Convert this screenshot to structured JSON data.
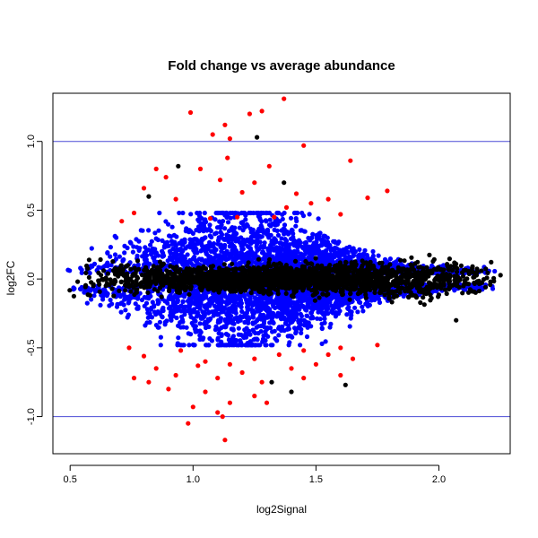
{
  "chart_data": {
    "type": "scatter",
    "title": "Fold change vs average abundance",
    "xlabel": "log2Signal",
    "ylabel": "log2FC",
    "xlim": [
      0.43,
      2.29
    ],
    "ylim": [
      -1.27,
      1.35
    ],
    "x_ticks": [
      0.5,
      1.0,
      1.5,
      2.0
    ],
    "x_tick_labels": [
      "0.5",
      "1.0",
      "1.5",
      "2.0"
    ],
    "y_ticks": [
      -1.0,
      -0.5,
      0.0,
      0.5,
      1.0
    ],
    "y_tick_labels": [
      "-1.0",
      "-0.5",
      "0.0",
      "0.5",
      "1.0"
    ],
    "reference_lines": [
      1.0,
      -1.0
    ],
    "reference_line_color": "#4b4bd6",
    "grid": false,
    "legend": false,
    "colors": {
      "not_significant": "#000000",
      "significant": "#0000ff",
      "large_change": "#ff0000"
    },
    "series": [
      {
        "color": "#ff0000",
        "points": [
          [
            0.99,
            1.21
          ],
          [
            1.13,
            1.12
          ],
          [
            1.23,
            1.2
          ],
          [
            1.28,
            1.22
          ],
          [
            1.37,
            1.31
          ],
          [
            1.08,
            1.05
          ],
          [
            1.15,
            1.02
          ],
          [
            1.45,
            0.97
          ],
          [
            1.64,
            0.86
          ],
          [
            1.14,
            0.88
          ],
          [
            1.31,
            0.82
          ],
          [
            1.03,
            0.8
          ],
          [
            0.85,
            0.8
          ],
          [
            0.89,
            0.74
          ],
          [
            1.11,
            0.72
          ],
          [
            1.25,
            0.7
          ],
          [
            0.8,
            0.66
          ],
          [
            1.2,
            0.63
          ],
          [
            1.42,
            0.62
          ],
          [
            1.55,
            0.58
          ],
          [
            1.79,
            0.64
          ],
          [
            1.71,
            0.59
          ],
          [
            1.48,
            0.55
          ],
          [
            0.93,
            0.58
          ],
          [
            1.38,
            0.52
          ],
          [
            1.6,
            0.47
          ],
          [
            0.76,
            0.48
          ],
          [
            0.71,
            0.42
          ],
          [
            1.07,
            0.44
          ],
          [
            1.18,
            0.45
          ],
          [
            1.33,
            0.45
          ],
          [
            0.95,
            -0.52
          ],
          [
            0.8,
            -0.56
          ],
          [
            1.05,
            -0.6
          ],
          [
            1.15,
            -0.62
          ],
          [
            1.25,
            -0.58
          ],
          [
            1.35,
            -0.55
          ],
          [
            1.45,
            -0.52
          ],
          [
            0.85,
            -0.65
          ],
          [
            0.93,
            -0.7
          ],
          [
            1.02,
            -0.63
          ],
          [
            1.1,
            -0.72
          ],
          [
            1.2,
            -0.68
          ],
          [
            1.28,
            -0.75
          ],
          [
            1.4,
            -0.65
          ],
          [
            1.5,
            -0.62
          ],
          [
            1.55,
            -0.55
          ],
          [
            1.6,
            -0.5
          ],
          [
            1.45,
            -0.72
          ],
          [
            1.6,
            -0.7
          ],
          [
            0.9,
            -0.8
          ],
          [
            1.05,
            -0.82
          ],
          [
            1.15,
            -0.9
          ],
          [
            1.0,
            -0.93
          ],
          [
            1.1,
            -0.97
          ],
          [
            1.25,
            -0.85
          ],
          [
            1.3,
            -0.9
          ],
          [
            0.82,
            -0.75
          ],
          [
            0.76,
            -0.72
          ],
          [
            0.98,
            -1.05
          ],
          [
            1.12,
            -1.0
          ],
          [
            1.13,
            -1.17
          ],
          [
            0.74,
            -0.5
          ],
          [
            1.65,
            -0.58
          ],
          [
            1.75,
            -0.48
          ]
        ]
      },
      {
        "color": "#000000",
        "points": [
          [
            1.26,
            1.03
          ],
          [
            0.94,
            0.82
          ],
          [
            1.37,
            0.7
          ],
          [
            1.32,
            -0.75
          ],
          [
            1.62,
            -0.77
          ],
          [
            1.4,
            -0.82
          ],
          [
            2.07,
            -0.3
          ],
          [
            0.82,
            0.6
          ]
        ]
      }
    ],
    "dense_clouds": [
      {
        "color": "#0000ff",
        "count": 4000,
        "x_range": [
          0.48,
          2.24
        ],
        "spread_range": [
          0.0,
          0.5
        ],
        "noise": 0.14
      },
      {
        "color": "#000000",
        "count": 2300,
        "x_range": [
          0.47,
          2.26
        ],
        "spread_range": [
          0.06,
          0.02
        ],
        "noise": 0.05
      }
    ]
  }
}
